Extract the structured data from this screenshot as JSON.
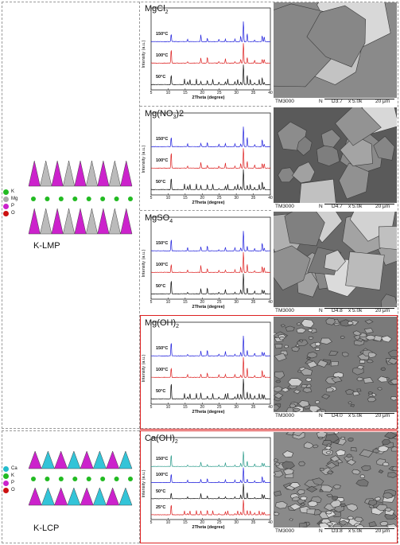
{
  "panels": [
    {
      "title": "MgCl",
      "sub": "2",
      "ylabel": "Intensity (a.u.)",
      "xlabel": "2Theta (degree)",
      "temps": [
        "150°C",
        "100°C",
        "50°C"
      ],
      "colors": [
        "#2222dd",
        "#dd2222",
        "#111111"
      ]
    },
    {
      "title": "Mg(NO",
      "sub": "3",
      "tail": ")2",
      "ylabel": "Intensity (a.u.)",
      "xlabel": "2Theta (degree)",
      "temps": [
        "150°C",
        "100°C",
        "50°C"
      ],
      "colors": [
        "#2222dd",
        "#dd2222",
        "#111111"
      ]
    },
    {
      "title": "MgSO",
      "sub": "4",
      "ylabel": "Intensity (a.u.)",
      "xlabel": "2Theta (degree)",
      "temps": [
        "150°C",
        "100°C",
        "50°C"
      ],
      "colors": [
        "#2222dd",
        "#dd2222",
        "#111111"
      ]
    },
    {
      "title": "Mg(OH)",
      "sub": "2",
      "ylabel": "Intensity (a.u.)",
      "xlabel": "2Theta (degree)",
      "temps": [
        "150°C",
        "100°C",
        "50°C"
      ],
      "colors": [
        "#2222dd",
        "#dd2222",
        "#111111"
      ]
    },
    {
      "title": "Ca(OH)",
      "sub": "2",
      "ylabel": "Intensity (a.u.)",
      "xlabel": "2Theta (degree)",
      "temps": [
        "150°C",
        "100°C",
        "50°C",
        "25°C"
      ],
      "colors": [
        "#2a9a8a",
        "#2222dd",
        "#111111",
        "#dd2222"
      ]
    }
  ],
  "xticks": [
    "5",
    "10",
    "15",
    "20",
    "25",
    "30",
    "35",
    "40"
  ],
  "sem": [
    {
      "inst": "TM3000",
      "mode": "N",
      "wd": "D3.7",
      "mag": "x 5.0k",
      "scale": "20 μm"
    },
    {
      "inst": "TM3000",
      "mode": "N",
      "wd": "D4.7",
      "mag": "x 5.0k",
      "scale": "20 μm"
    },
    {
      "inst": "TM3000",
      "mode": "N",
      "wd": "D4.8",
      "mag": "x 5.0k",
      "scale": "20 μm"
    },
    {
      "inst": "TM3000",
      "mode": "N",
      "wd": "D4.0",
      "mag": "x 5.0k",
      "scale": "20 μm"
    },
    {
      "inst": "TM3000",
      "mode": "N",
      "wd": "D3.8",
      "mag": "x 5.0k",
      "scale": "20 μm"
    }
  ],
  "structures": {
    "lmp": {
      "name": "K-LMP",
      "legend": [
        "K",
        "Mg",
        "P",
        "O"
      ],
      "colors": [
        "#22bb22",
        "#aaaaaa",
        "#cc22cc",
        "#cc1111"
      ]
    },
    "lcp": {
      "name": "K-LCP",
      "legend": [
        "Ca",
        "K",
        "P",
        "O"
      ],
      "colors": [
        "#22bbcc",
        "#22bb22",
        "#cc22cc",
        "#cc1111"
      ]
    }
  }
}
